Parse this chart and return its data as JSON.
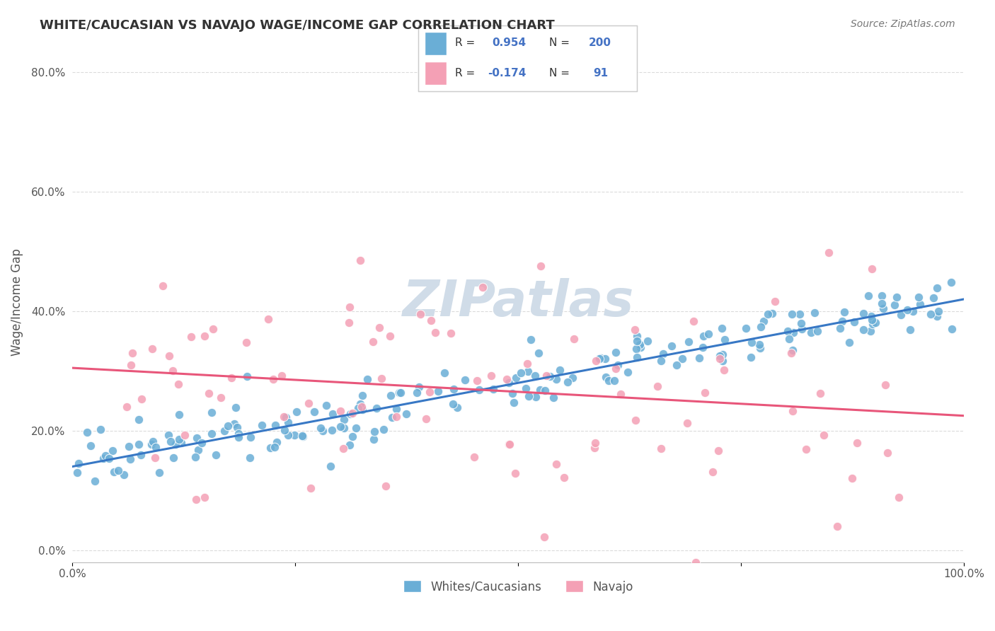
{
  "title": "WHITE/CAUCASIAN VS NAVAJO WAGE/INCOME GAP CORRELATION CHART",
  "source": "Source: ZipAtlas.com",
  "ylabel": "Wage/Income Gap",
  "xlim": [
    0.0,
    1.0
  ],
  "ylim": [
    -0.02,
    0.85
  ],
  "yticks": [
    0.0,
    0.2,
    0.4,
    0.6,
    0.8
  ],
  "xticks": [
    0.0,
    0.25,
    0.5,
    0.75,
    1.0
  ],
  "blue_R": 0.954,
  "blue_N": 200,
  "pink_R": -0.174,
  "pink_N": 91,
  "blue_color": "#6aaed6",
  "pink_color": "#f4a0b5",
  "blue_line_color": "#3878c5",
  "pink_line_color": "#e8567a",
  "grid_color": "#cccccc",
  "title_color": "#333333",
  "watermark_color": "#d0dce8",
  "legend_text_color": "#4472c4",
  "background_color": "#ffffff",
  "blue_seed": 42,
  "pink_seed": 99,
  "blue_slope": 0.28,
  "blue_intercept": 0.14,
  "pink_slope": -0.08,
  "pink_intercept": 0.305
}
